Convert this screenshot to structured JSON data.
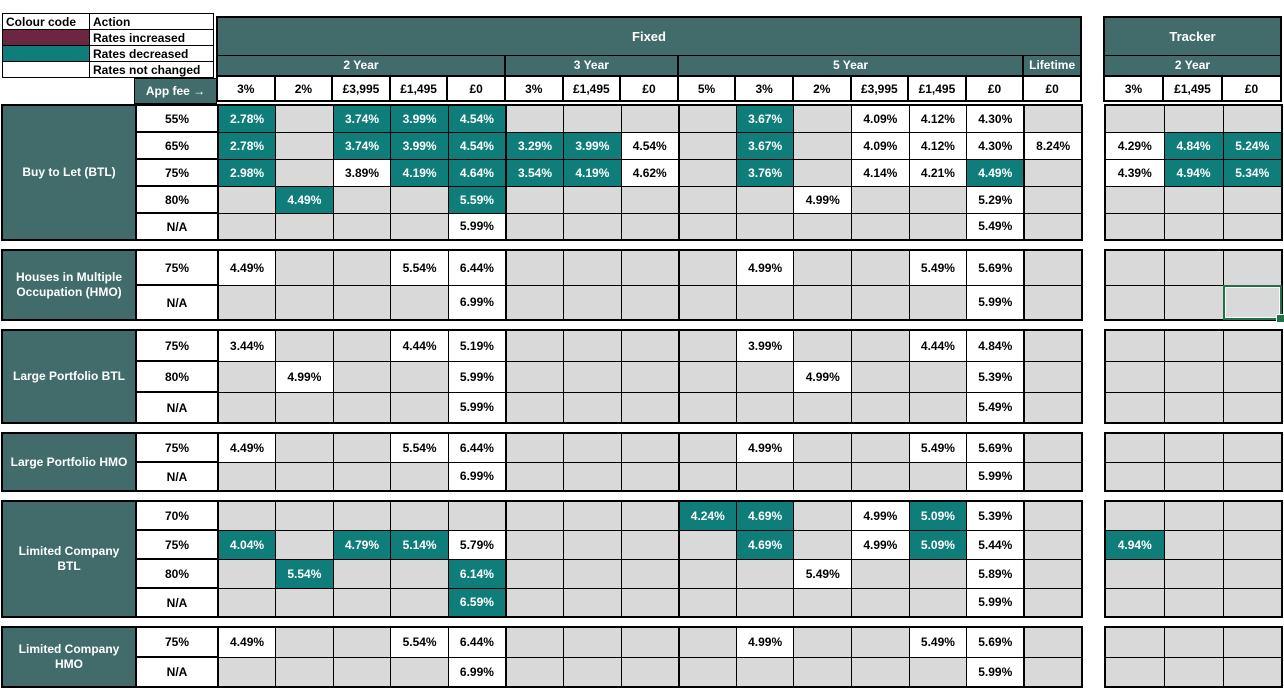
{
  "colors": {
    "slate": "#416C6B",
    "teal": "#0F7E7B",
    "maroon": "#6D2641",
    "gray": "#D9D9D9",
    "green": "#1F7245"
  },
  "legend": {
    "header": [
      "Colour code",
      "Action"
    ],
    "rows": [
      {
        "color": "#6D2641",
        "label": "Rates increased"
      },
      {
        "color": "#0F7E7B",
        "label": "Rates decreased"
      },
      {
        "color": "#FFFFFF",
        "label": "Rates not changed"
      }
    ]
  },
  "header": {
    "app_fee_label": "App fee →",
    "groups": [
      {
        "label": "Fixed",
        "subgroups": [
          {
            "label": "2 Year",
            "fees": [
              "3%",
              "2%",
              "£3,995",
              "£1,495",
              "£0"
            ]
          },
          {
            "label": "3 Year",
            "fees": [
              "3%",
              "£1,495",
              "£0"
            ]
          },
          {
            "label": "5 Year",
            "fees": [
              "5%",
              "3%",
              "2%",
              "£3,995",
              "£1,495",
              "£0"
            ]
          },
          {
            "label": "Lifetime",
            "fees": [
              "£0"
            ]
          }
        ]
      },
      {
        "label": "Tracker",
        "subgroups": [
          {
            "label": "2 Year",
            "fees": [
              "3%",
              "£1,495",
              "£0"
            ]
          }
        ]
      }
    ]
  },
  "sections": [
    {
      "label": "Buy to Let (BTL)",
      "rows": [
        {
          "ltv": "55%",
          "fixed": [
            {
              "v": "2.78%",
              "c": "dec"
            },
            null,
            {
              "v": "3.74%",
              "c": "dec"
            },
            {
              "v": "3.99%",
              "c": "dec"
            },
            {
              "v": "4.54%",
              "c": "dec"
            },
            null,
            null,
            null,
            null,
            {
              "v": "3.67%",
              "c": "dec"
            },
            null,
            {
              "v": "4.09%",
              "c": "nc"
            },
            {
              "v": "4.12%",
              "c": "nc"
            },
            {
              "v": "4.30%",
              "c": "nc"
            },
            null
          ],
          "tracker": [
            null,
            null,
            null
          ]
        },
        {
          "ltv": "65%",
          "fixed": [
            {
              "v": "2.78%",
              "c": "dec"
            },
            null,
            {
              "v": "3.74%",
              "c": "dec"
            },
            {
              "v": "3.99%",
              "c": "dec"
            },
            {
              "v": "4.54%",
              "c": "dec"
            },
            {
              "v": "3.29%",
              "c": "dec"
            },
            {
              "v": "3.99%",
              "c": "dec"
            },
            {
              "v": "4.54%",
              "c": "nc"
            },
            null,
            {
              "v": "3.67%",
              "c": "dec"
            },
            null,
            {
              "v": "4.09%",
              "c": "nc"
            },
            {
              "v": "4.12%",
              "c": "nc"
            },
            {
              "v": "4.30%",
              "c": "nc"
            },
            {
              "v": "8.24%",
              "c": "nc"
            }
          ],
          "tracker": [
            {
              "v": "4.29%",
              "c": "nc"
            },
            {
              "v": "4.84%",
              "c": "dec"
            },
            {
              "v": "5.24%",
              "c": "dec"
            }
          ]
        },
        {
          "ltv": "75%",
          "fixed": [
            {
              "v": "2.98%",
              "c": "dec"
            },
            null,
            {
              "v": "3.89%",
              "c": "nc"
            },
            {
              "v": "4.19%",
              "c": "dec"
            },
            {
              "v": "4.64%",
              "c": "dec"
            },
            {
              "v": "3.54%",
              "c": "dec"
            },
            {
              "v": "4.19%",
              "c": "dec"
            },
            {
              "v": "4.62%",
              "c": "nc"
            },
            null,
            {
              "v": "3.76%",
              "c": "dec"
            },
            null,
            {
              "v": "4.14%",
              "c": "nc"
            },
            {
              "v": "4.21%",
              "c": "nc"
            },
            {
              "v": "4.49%",
              "c": "dec"
            },
            null
          ],
          "tracker": [
            {
              "v": "4.39%",
              "c": "nc"
            },
            {
              "v": "4.94%",
              "c": "dec"
            },
            {
              "v": "5.34%",
              "c": "dec"
            }
          ]
        },
        {
          "ltv": "80%",
          "fixed": [
            null,
            {
              "v": "4.49%",
              "c": "dec"
            },
            null,
            null,
            {
              "v": "5.59%",
              "c": "dec"
            },
            null,
            null,
            null,
            null,
            null,
            {
              "v": "4.99%",
              "c": "nc"
            },
            null,
            null,
            {
              "v": "5.29%",
              "c": "nc"
            },
            null
          ],
          "tracker": [
            null,
            null,
            null
          ]
        },
        {
          "ltv": "N/A",
          "fixed": [
            null,
            null,
            null,
            null,
            {
              "v": "5.99%",
              "c": "nc"
            },
            null,
            null,
            null,
            null,
            null,
            null,
            null,
            null,
            {
              "v": "5.49%",
              "c": "nc"
            },
            null
          ],
          "tracker": [
            null,
            null,
            null
          ]
        }
      ]
    },
    {
      "label": "Houses in Multiple Occupation (HMO)",
      "rows": [
        {
          "ltv": "75%",
          "fixed": [
            {
              "v": "4.49%",
              "c": "nc"
            },
            null,
            null,
            {
              "v": "5.54%",
              "c": "nc"
            },
            {
              "v": "6.44%",
              "c": "nc"
            },
            null,
            null,
            null,
            null,
            {
              "v": "4.99%",
              "c": "nc"
            },
            null,
            null,
            {
              "v": "5.49%",
              "c": "nc"
            },
            {
              "v": "5.69%",
              "c": "nc"
            },
            null
          ],
          "tracker": [
            null,
            null,
            null
          ]
        },
        {
          "ltv": "N/A",
          "fixed": [
            null,
            null,
            null,
            null,
            {
              "v": "6.99%",
              "c": "nc"
            },
            null,
            null,
            null,
            null,
            null,
            null,
            null,
            null,
            {
              "v": "5.99%",
              "c": "nc"
            },
            null
          ],
          "tracker": [
            null,
            null,
            {
              "sel": true
            }
          ]
        }
      ]
    },
    {
      "label": "Large Portfolio BTL",
      "rows": [
        {
          "ltv": "75%",
          "fixed": [
            {
              "v": "3.44%",
              "c": "nc"
            },
            null,
            null,
            {
              "v": "4.44%",
              "c": "nc"
            },
            {
              "v": "5.19%",
              "c": "nc"
            },
            null,
            null,
            null,
            null,
            {
              "v": "3.99%",
              "c": "nc"
            },
            null,
            null,
            {
              "v": "4.44%",
              "c": "nc"
            },
            {
              "v": "4.84%",
              "c": "nc"
            },
            null
          ],
          "tracker": [
            null,
            null,
            null
          ]
        },
        {
          "ltv": "80%",
          "fixed": [
            null,
            {
              "v": "4.99%",
              "c": "nc"
            },
            null,
            null,
            {
              "v": "5.99%",
              "c": "nc"
            },
            null,
            null,
            null,
            null,
            null,
            {
              "v": "4.99%",
              "c": "nc"
            },
            null,
            null,
            {
              "v": "5.39%",
              "c": "nc"
            },
            null
          ],
          "tracker": [
            null,
            null,
            null
          ]
        },
        {
          "ltv": "N/A",
          "fixed": [
            null,
            null,
            null,
            null,
            {
              "v": "5.99%",
              "c": "nc"
            },
            null,
            null,
            null,
            null,
            null,
            null,
            null,
            null,
            {
              "v": "5.49%",
              "c": "nc"
            },
            null
          ],
          "tracker": [
            null,
            null,
            null
          ]
        }
      ]
    },
    {
      "label": "Large Portfolio HMO",
      "rows": [
        {
          "ltv": "75%",
          "fixed": [
            {
              "v": "4.49%",
              "c": "nc"
            },
            null,
            null,
            {
              "v": "5.54%",
              "c": "nc"
            },
            {
              "v": "6.44%",
              "c": "nc"
            },
            null,
            null,
            null,
            null,
            {
              "v": "4.99%",
              "c": "nc"
            },
            null,
            null,
            {
              "v": "5.49%",
              "c": "nc"
            },
            {
              "v": "5.69%",
              "c": "nc"
            },
            null
          ],
          "tracker": [
            null,
            null,
            null
          ]
        },
        {
          "ltv": "N/A",
          "fixed": [
            null,
            null,
            null,
            null,
            {
              "v": "6.99%",
              "c": "nc"
            },
            null,
            null,
            null,
            null,
            null,
            null,
            null,
            null,
            {
              "v": "5.99%",
              "c": "nc"
            },
            null
          ],
          "tracker": [
            null,
            null,
            null
          ]
        }
      ]
    },
    {
      "label": "Limited Company BTL",
      "rows": [
        {
          "ltv": "70%",
          "fixed": [
            null,
            null,
            null,
            null,
            null,
            null,
            null,
            null,
            {
              "v": "4.24%",
              "c": "dec"
            },
            {
              "v": "4.69%",
              "c": "dec"
            },
            null,
            {
              "v": "4.99%",
              "c": "nc"
            },
            {
              "v": "5.09%",
              "c": "dec"
            },
            {
              "v": "5.39%",
              "c": "nc"
            },
            null
          ],
          "tracker": [
            null,
            null,
            null
          ]
        },
        {
          "ltv": "75%",
          "fixed": [
            {
              "v": "4.04%",
              "c": "dec"
            },
            null,
            {
              "v": "4.79%",
              "c": "dec"
            },
            {
              "v": "5.14%",
              "c": "dec"
            },
            {
              "v": "5.79%",
              "c": "nc"
            },
            null,
            null,
            null,
            null,
            {
              "v": "4.69%",
              "c": "dec"
            },
            null,
            {
              "v": "4.99%",
              "c": "nc"
            },
            {
              "v": "5.09%",
              "c": "dec"
            },
            {
              "v": "5.44%",
              "c": "nc"
            },
            null
          ],
          "tracker": [
            {
              "v": "4.94%",
              "c": "dec"
            },
            null,
            null
          ]
        },
        {
          "ltv": "80%",
          "fixed": [
            null,
            {
              "v": "5.54%",
              "c": "dec"
            },
            null,
            null,
            {
              "v": "6.14%",
              "c": "dec"
            },
            null,
            null,
            null,
            null,
            null,
            {
              "v": "5.49%",
              "c": "nc"
            },
            null,
            null,
            {
              "v": "5.89%",
              "c": "nc"
            },
            null
          ],
          "tracker": [
            null,
            null,
            null
          ]
        },
        {
          "ltv": "N/A",
          "fixed": [
            null,
            null,
            null,
            null,
            {
              "v": "6.59%",
              "c": "dec"
            },
            null,
            null,
            null,
            null,
            null,
            null,
            null,
            null,
            {
              "v": "5.99%",
              "c": "nc"
            },
            null
          ],
          "tracker": [
            null,
            null,
            null
          ]
        }
      ]
    },
    {
      "label": "Limited Company HMO",
      "rows": [
        {
          "ltv": "75%",
          "fixed": [
            {
              "v": "4.49%",
              "c": "nc"
            },
            null,
            null,
            {
              "v": "5.54%",
              "c": "nc"
            },
            {
              "v": "6.44%",
              "c": "nc"
            },
            null,
            null,
            null,
            null,
            {
              "v": "4.99%",
              "c": "nc"
            },
            null,
            null,
            {
              "v": "5.49%",
              "c": "nc"
            },
            {
              "v": "5.69%",
              "c": "nc"
            },
            null
          ],
          "tracker": [
            null,
            null,
            null
          ]
        },
        {
          "ltv": "N/A",
          "fixed": [
            null,
            null,
            null,
            null,
            {
              "v": "6.99%",
              "c": "nc"
            },
            null,
            null,
            null,
            null,
            null,
            null,
            null,
            null,
            {
              "v": "5.99%",
              "c": "nc"
            },
            null
          ],
          "tracker": [
            null,
            null,
            null
          ]
        }
      ]
    }
  ]
}
